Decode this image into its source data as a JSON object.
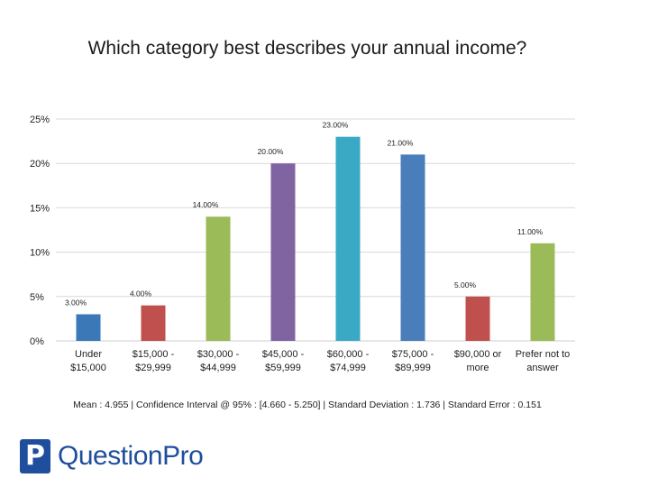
{
  "title": "Which category best describes your annual income?",
  "chart_data": {
    "type": "bar",
    "title": "Which category best describes your annual income?",
    "categories": [
      [
        "Under",
        "$15,000"
      ],
      [
        "$15,000 -",
        "$29,999"
      ],
      [
        "$30,000 -",
        "$44,999"
      ],
      [
        "$45,000 -",
        "$59,999"
      ],
      [
        "$60,000 -",
        "$74,999"
      ],
      [
        "$75,000 -",
        "$89,999"
      ],
      [
        "$90,000 or",
        "more"
      ],
      [
        "Prefer not to",
        "answer"
      ]
    ],
    "values": [
      3,
      4,
      14,
      20,
      23,
      21,
      5,
      11
    ],
    "value_labels": [
      "3.00%",
      "4.00%",
      "14.00%",
      "20.00%",
      "23.00%",
      "21.00%",
      "5.00%",
      "11.00%"
    ],
    "colors": [
      "#3a78b8",
      "#c0504d",
      "#9bbb59",
      "#8064a2",
      "#3aa9c6",
      "#4a7ebb",
      "#c0504d",
      "#9bbb59"
    ],
    "ylim": [
      0,
      25
    ],
    "yticks": [
      0,
      5,
      10,
      15,
      20,
      25
    ],
    "ytick_labels": [
      "0%",
      "5%",
      "10%",
      "15%",
      "20%",
      "25%"
    ],
    "grid": true,
    "legend": "none"
  },
  "stats_line": "Mean : 4.955  |  Confidence Interval @ 95% : [4.660 - 5.250]  |  Standard Deviation : 1.736  |  Standard Error : 0.151",
  "logo": {
    "mark": "P",
    "text": "QuestionPro",
    "color": "#1f4e9c"
  }
}
